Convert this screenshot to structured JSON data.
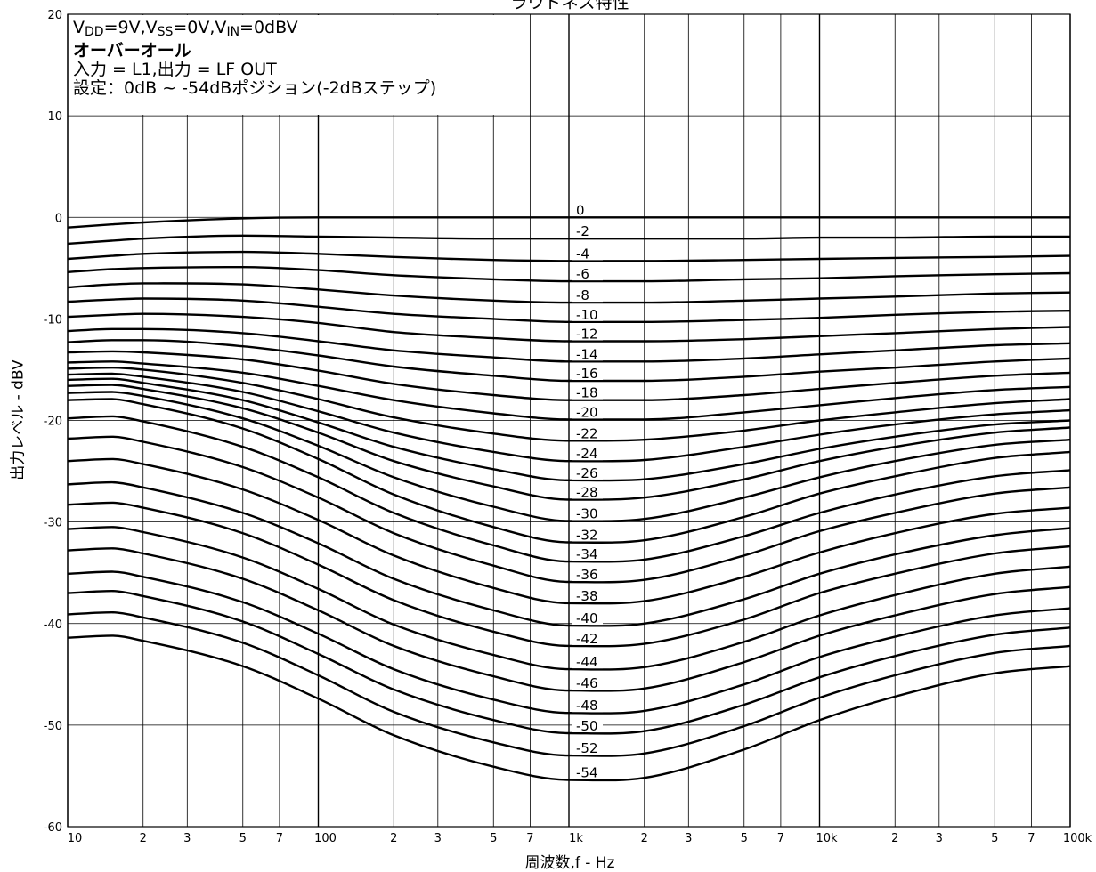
{
  "chart_data": {
    "type": "line",
    "title": "ラウドネス特性",
    "xlabel": "周波数,f  -  Hz",
    "ylabel": "出力レベル  -  dBV",
    "x_scale": "log",
    "xlim": [
      10,
      100000
    ],
    "ylim": [
      -60,
      20
    ],
    "y_ticks": [
      20,
      10,
      0,
      -10,
      -20,
      -30,
      -40,
      -50,
      -60
    ],
    "x_tick_labels": [
      {
        "value": 10,
        "label": "10"
      },
      {
        "value": 20,
        "label": "2"
      },
      {
        "value": 30,
        "label": "3"
      },
      {
        "value": 50,
        "label": "5"
      },
      {
        "value": 70,
        "label": "7"
      },
      {
        "value": 100,
        "label": "100"
      },
      {
        "value": 200,
        "label": "2"
      },
      {
        "value": 300,
        "label": "3"
      },
      {
        "value": 500,
        "label": "5"
      },
      {
        "value": 700,
        "label": "7"
      },
      {
        "value": 1000,
        "label": "1k"
      },
      {
        "value": 2000,
        "label": "2"
      },
      {
        "value": 3000,
        "label": "3"
      },
      {
        "value": 5000,
        "label": "5"
      },
      {
        "value": 7000,
        "label": "7"
      },
      {
        "value": 10000,
        "label": "10k"
      },
      {
        "value": 20000,
        "label": "2"
      },
      {
        "value": 30000,
        "label": "3"
      },
      {
        "value": 50000,
        "label": "5"
      },
      {
        "value": 70000,
        "label": "7"
      },
      {
        "value": 100000,
        "label": "100k"
      }
    ],
    "grid": true,
    "conditions": {
      "line1": {
        "v": "V",
        "dd": "DD",
        "mid1": "=9V,V",
        "ss": "SS",
        "mid2": "=0V,V",
        "in": "IN",
        "end": "=0dBV"
      },
      "line2": "オーバーオール",
      "line3": "入力 = L1,出力 = LF OUT",
      "line4": "設定：0dB ~ -54dBポジション(-2dBステップ)"
    },
    "x": [
      10,
      15,
      20,
      50,
      100,
      200,
      500,
      1000,
      2000,
      5000,
      10000,
      20000,
      50000,
      100000
    ],
    "series": [
      {
        "name": "0",
        "values": [
          -1.0,
          -0.7,
          -0.5,
          -0.1,
          0.0,
          0.0,
          0.0,
          0.0,
          0.0,
          0.0,
          0.0,
          0.0,
          0.0,
          0.0
        ]
      },
      {
        "name": "-2",
        "values": [
          -2.6,
          -2.3,
          -2.1,
          -1.8,
          -1.9,
          -2.0,
          -2.1,
          -2.1,
          -2.1,
          -2.1,
          -2.0,
          -2.0,
          -1.9,
          -1.9
        ]
      },
      {
        "name": "-4",
        "values": [
          -4.1,
          -3.8,
          -3.6,
          -3.4,
          -3.6,
          -3.9,
          -4.2,
          -4.3,
          -4.3,
          -4.2,
          -4.1,
          -4.0,
          -3.9,
          -3.8
        ]
      },
      {
        "name": "-6",
        "values": [
          -5.4,
          -5.1,
          -5.0,
          -4.9,
          -5.2,
          -5.7,
          -6.1,
          -6.3,
          -6.3,
          -6.1,
          -6.0,
          -5.8,
          -5.6,
          -5.5
        ]
      },
      {
        "name": "-8",
        "values": [
          -6.9,
          -6.6,
          -6.5,
          -6.6,
          -7.1,
          -7.7,
          -8.2,
          -8.4,
          -8.4,
          -8.2,
          -8.0,
          -7.8,
          -7.5,
          -7.4
        ]
      },
      {
        "name": "-10",
        "values": [
          -8.3,
          -8.1,
          -8.0,
          -8.2,
          -8.8,
          -9.5,
          -10.0,
          -10.3,
          -10.3,
          -10.1,
          -9.9,
          -9.6,
          -9.3,
          -9.2
        ]
      },
      {
        "name": "-12",
        "values": [
          -9.8,
          -9.6,
          -9.5,
          -9.8,
          -10.4,
          -11.3,
          -11.9,
          -12.2,
          -12.2,
          -12.0,
          -11.7,
          -11.4,
          -11.0,
          -10.8
        ]
      },
      {
        "name": "-14",
        "values": [
          -11.2,
          -11.0,
          -11.0,
          -11.4,
          -12.2,
          -13.1,
          -13.8,
          -14.2,
          -14.2,
          -13.9,
          -13.5,
          -13.1,
          -12.6,
          -12.4
        ]
      },
      {
        "name": "-16",
        "values": [
          -12.3,
          -12.1,
          -12.1,
          -12.7,
          -13.6,
          -14.7,
          -15.6,
          -16.1,
          -16.1,
          -15.7,
          -15.2,
          -14.8,
          -14.2,
          -13.9
        ]
      },
      {
        "name": "-18",
        "values": [
          -13.3,
          -13.2,
          -13.3,
          -14.0,
          -15.1,
          -16.4,
          -17.5,
          -18.0,
          -18.0,
          -17.5,
          -16.9,
          -16.3,
          -15.6,
          -15.3
        ]
      },
      {
        "name": "-20",
        "values": [
          -14.3,
          -14.2,
          -14.4,
          -15.3,
          -16.6,
          -18.0,
          -19.3,
          -19.9,
          -19.9,
          -19.2,
          -18.5,
          -17.8,
          -17.0,
          -16.7
        ]
      },
      {
        "name": "-22",
        "values": [
          -14.9,
          -14.8,
          -15.0,
          -16.3,
          -17.9,
          -19.7,
          -21.3,
          -22.0,
          -21.9,
          -21.0,
          -20.0,
          -19.2,
          -18.3,
          -17.9
        ]
      },
      {
        "name": "-24",
        "values": [
          -15.5,
          -15.4,
          -15.7,
          -17.2,
          -19.1,
          -21.2,
          -23.1,
          -24.0,
          -23.9,
          -22.6,
          -21.4,
          -20.4,
          -19.4,
          -19.0
        ]
      },
      {
        "name": "-26",
        "values": [
          -16.0,
          -15.9,
          -16.3,
          -18.0,
          -20.2,
          -22.6,
          -24.8,
          -25.9,
          -25.8,
          -24.3,
          -22.8,
          -21.6,
          -20.4,
          -20.0
        ]
      },
      {
        "name": "-28",
        "values": [
          -16.6,
          -16.5,
          -16.9,
          -18.8,
          -21.2,
          -24.0,
          -26.5,
          -27.8,
          -27.6,
          -25.8,
          -24.0,
          -22.6,
          -21.2,
          -20.7
        ]
      },
      {
        "name": "-30",
        "values": [
          -17.3,
          -17.2,
          -17.6,
          -19.8,
          -22.5,
          -25.6,
          -28.5,
          -29.9,
          -29.7,
          -27.6,
          -25.6,
          -24.0,
          -22.4,
          -21.9
        ]
      },
      {
        "name": "-32",
        "values": [
          -18.0,
          -17.9,
          -18.4,
          -20.8,
          -23.8,
          -27.3,
          -30.5,
          -32.0,
          -31.8,
          -29.5,
          -27.2,
          -25.5,
          -23.7,
          -23.1
        ]
      },
      {
        "name": "-34",
        "values": [
          -19.8,
          -19.6,
          -20.1,
          -22.6,
          -25.6,
          -29.1,
          -32.3,
          -33.9,
          -33.7,
          -31.4,
          -29.1,
          -27.3,
          -25.5,
          -24.9
        ]
      },
      {
        "name": "-36",
        "values": [
          -21.8,
          -21.6,
          -22.1,
          -24.6,
          -27.6,
          -31.1,
          -34.3,
          -35.9,
          -35.7,
          -33.3,
          -30.9,
          -29.1,
          -27.2,
          -26.6
        ]
      },
      {
        "name": "-38",
        "values": [
          -24.0,
          -23.8,
          -24.3,
          -26.8,
          -29.8,
          -33.3,
          -36.5,
          -38.0,
          -37.8,
          -35.4,
          -33.0,
          -31.1,
          -29.2,
          -28.6
        ]
      },
      {
        "name": "-40",
        "values": [
          -26.3,
          -26.1,
          -26.6,
          -29.1,
          -32.1,
          -35.6,
          -38.7,
          -40.2,
          -40.0,
          -37.6,
          -35.1,
          -33.2,
          -31.3,
          -30.6
        ]
      },
      {
        "name": "-42",
        "values": [
          -28.3,
          -28.1,
          -28.6,
          -31.1,
          -34.2,
          -37.7,
          -40.8,
          -42.2,
          -42.0,
          -39.6,
          -37.0,
          -35.1,
          -33.1,
          -32.4
        ]
      },
      {
        "name": "-44",
        "values": [
          -30.7,
          -30.5,
          -31.0,
          -33.5,
          -36.6,
          -40.1,
          -43.1,
          -44.5,
          -44.3,
          -41.8,
          -39.2,
          -37.2,
          -35.1,
          -34.4
        ]
      },
      {
        "name": "-46",
        "values": [
          -32.8,
          -32.6,
          -33.1,
          -35.6,
          -38.7,
          -42.2,
          -45.2,
          -46.6,
          -46.4,
          -43.8,
          -41.2,
          -39.2,
          -37.1,
          -36.4
        ]
      },
      {
        "name": "-48",
        "values": [
          -35.1,
          -34.9,
          -35.4,
          -37.9,
          -41.0,
          -44.5,
          -47.5,
          -48.8,
          -48.6,
          -46.0,
          -43.3,
          -41.3,
          -39.2,
          -38.5
        ]
      },
      {
        "name": "-50",
        "values": [
          -37.0,
          -36.8,
          -37.3,
          -39.8,
          -43.0,
          -46.5,
          -49.5,
          -50.8,
          -50.6,
          -48.0,
          -45.3,
          -43.2,
          -41.1,
          -40.4
        ]
      },
      {
        "name": "-52",
        "values": [
          -39.1,
          -38.9,
          -39.4,
          -41.9,
          -45.1,
          -48.7,
          -51.7,
          -53.0,
          -52.8,
          -50.1,
          -47.3,
          -45.1,
          -42.9,
          -42.2
        ]
      },
      {
        "name": "-54",
        "values": [
          -41.4,
          -41.2,
          -41.7,
          -44.2,
          -47.4,
          -51.0,
          -54.1,
          -55.4,
          -55.2,
          -52.4,
          -49.5,
          -47.2,
          -44.9,
          -44.2
        ]
      }
    ]
  }
}
